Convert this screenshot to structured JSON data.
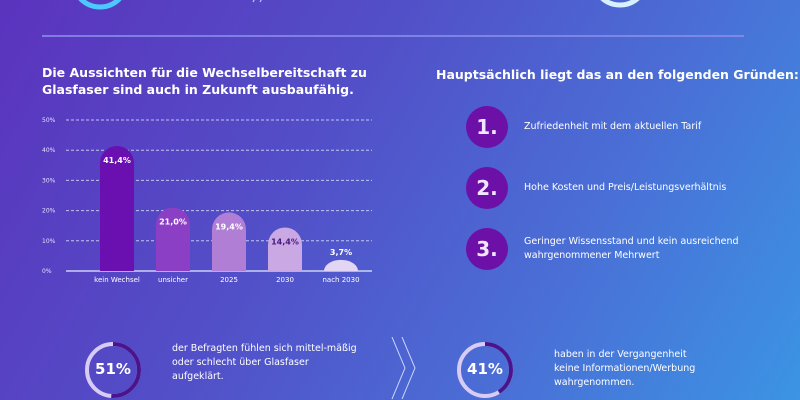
{
  "chart_title": "Die Aussichten für die Wechselbereitschaft zu Glasfaser sind auch in Zukunft ausbaufähig.",
  "chart_data": {
    "type": "bar",
    "title": "Die Aussichten für die Wechselbereitschaft zu Glasfaser sind auch in Zukunft ausbaufähig.",
    "categories": [
      "kein Wechsel",
      "unsicher",
      "2025",
      "2030",
      "nach 2030"
    ],
    "values": [
      41.4,
      21.0,
      19.4,
      14.4,
      3.7
    ],
    "data_labels": [
      "41,4%",
      "21,0%",
      "19,4%",
      "14,4%",
      "3,7%"
    ],
    "yticks": [
      "0%",
      "10%",
      "20%",
      "30%",
      "40%",
      "50%"
    ],
    "ylim": [
      0,
      50
    ],
    "unit": "%",
    "grid": true,
    "colors": [
      "#6a0fb0",
      "#8a3fc4",
      "#b07ed4",
      "#caa8e4",
      "#e2d6f4"
    ]
  },
  "reasons": {
    "title": "Hauptsächlich liegt das an den folgenden Gründen:",
    "items": [
      {
        "num": "1.",
        "text": "Zufriedenheit mit dem aktuellen Tarif"
      },
      {
        "num": "2.",
        "text": "Hohe Kosten und Preis/Leistungsverhältnis"
      },
      {
        "num": "3.",
        "text": "Geringer Wissensstand und kein ausreichend wahrgenommener Mehrwert"
      }
    ]
  },
  "stats": [
    {
      "value": "51%",
      "fraction": 0.51,
      "text": "der Befragten fühlen sich mittel-mäßig oder schlecht über Glasfaser aufgeklärt."
    },
    {
      "value": "41%",
      "fraction": 0.41,
      "text": "haben in der Vergangenheit keine Informationen/Werbung wahrgenommen."
    }
  ],
  "colors": {
    "accent": "#6c10a8",
    "ring_track": "#d8ccf4",
    "ring_fill": "#4a148c"
  }
}
